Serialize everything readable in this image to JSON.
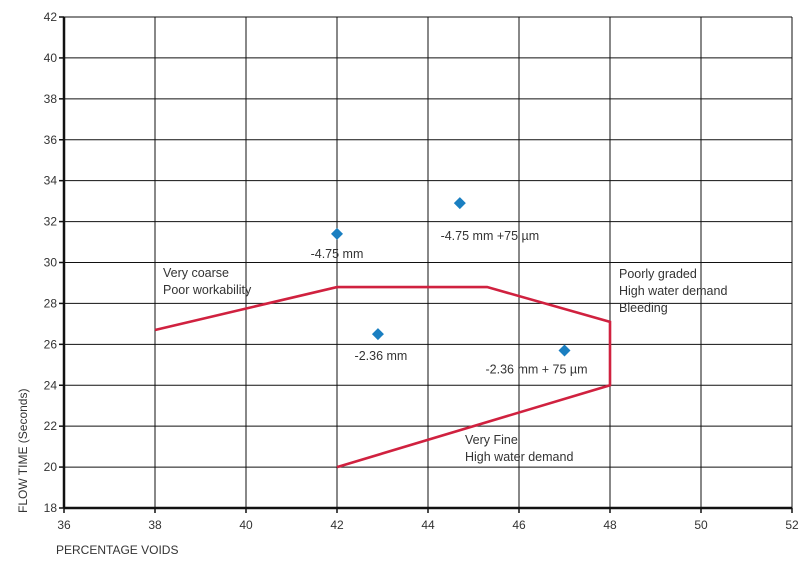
{
  "chart_data": {
    "type": "scatter",
    "title": "",
    "xlabel": "PERCENTAGE VOIDS",
    "ylabel": "FLOW TIME (Seconds)",
    "xlim": [
      36,
      52
    ],
    "ylim": [
      18,
      42
    ],
    "xticks": [
      36,
      38,
      40,
      42,
      44,
      46,
      48,
      50,
      52
    ],
    "yticks": [
      18,
      20,
      22,
      24,
      26,
      28,
      30,
      32,
      34,
      36,
      38,
      40,
      42
    ],
    "grid": true,
    "marker_color": "#1a7fc1",
    "boundary_color": "#d0213f",
    "points": [
      {
        "label": "-4.75 mm",
        "x": 42.0,
        "y": 31.4
      },
      {
        "label": "-4.75 mm +75 µm",
        "x": 44.7,
        "y": 32.9
      },
      {
        "label": "-2.36 mm",
        "x": 42.9,
        "y": 26.5
      },
      {
        "label": "-2.36 mm + 75 µm",
        "x": 47.0,
        "y": 25.7
      }
    ],
    "boundary": [
      {
        "x": 38.0,
        "y": 26.7
      },
      {
        "x": 42.0,
        "y": 28.8
      },
      {
        "x": 45.3,
        "y": 28.8
      },
      {
        "x": 48.0,
        "y": 27.1
      },
      {
        "x": 48.0,
        "y": 24.0
      },
      {
        "x": 42.0,
        "y": 20.0
      }
    ],
    "annotations": [
      {
        "lines": [
          "Very coarse",
          "Poor workability"
        ]
      },
      {
        "lines": [
          "Poorly graded",
          "High water demand",
          "Bleeding"
        ]
      },
      {
        "lines": [
          "Very Fine",
          "High water demand"
        ]
      }
    ]
  }
}
